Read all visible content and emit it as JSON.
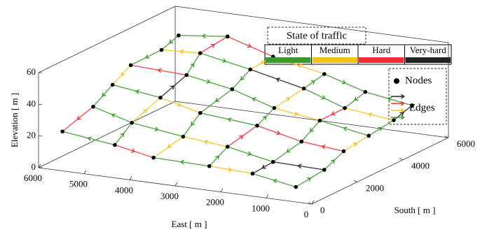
{
  "chart_data": {
    "type": "network3d",
    "xlabel": "East [ m ]",
    "ylabel": "South [ m ]",
    "zlabel": "Elevation [ m ]",
    "xlim": [
      0,
      6000
    ],
    "xticks": [
      0,
      1000,
      2000,
      3000,
      4000,
      5000,
      6000
    ],
    "ylim": [
      0,
      6000
    ],
    "yticks": [
      0,
      2000,
      4000,
      6000
    ],
    "zlim": [
      0,
      60
    ],
    "zticks": [
      0,
      20,
      40,
      60
    ],
    "legend_title": "State of traffic",
    "states": [
      {
        "name": "Light",
        "color": "#3a9a2a"
      },
      {
        "name": "Medium",
        "color": "#f2c21a"
      },
      {
        "name": "Hard",
        "color": "#ee2f3a"
      },
      {
        "name": "Very-hard",
        "color": "#222222"
      }
    ],
    "nodes_label": "Nodes",
    "edges_label": "Edges",
    "node_color": "#000000",
    "nodes": [
      {
        "east": 600,
        "south": 500,
        "elevation": 5
      },
      {
        "east": 1650,
        "south": 700,
        "elevation": 8
      },
      {
        "east": 2550,
        "south": 600,
        "elevation": 10
      },
      {
        "east": 3700,
        "south": 450,
        "elevation": 12
      },
      {
        "east": 4650,
        "south": 650,
        "elevation": 15
      },
      {
        "east": 5750,
        "south": 550,
        "elevation": 20
      },
      {
        "east": 550,
        "south": 1650,
        "elevation": 8
      },
      {
        "east": 1600,
        "south": 1500,
        "elevation": 10
      },
      {
        "east": 2700,
        "south": 1700,
        "elevation": 14
      },
      {
        "east": 3600,
        "south": 1550,
        "elevation": 18
      },
      {
        "east": 4750,
        "south": 1600,
        "elevation": 22
      },
      {
        "east": 5650,
        "south": 1700,
        "elevation": 28
      },
      {
        "east": 650,
        "south": 2700,
        "elevation": 12
      },
      {
        "east": 1550,
        "south": 2650,
        "elevation": 15
      },
      {
        "east": 2600,
        "south": 2800,
        "elevation": 20
      },
      {
        "east": 3750,
        "south": 2600,
        "elevation": 25
      },
      {
        "east": 4700,
        "south": 2750,
        "elevation": 30
      },
      {
        "east": 5700,
        "south": 2650,
        "elevation": 35
      },
      {
        "east": 600,
        "south": 3700,
        "elevation": 15
      },
      {
        "east": 1700,
        "south": 3750,
        "elevation": 20
      },
      {
        "east": 2650,
        "south": 3650,
        "elevation": 25
      },
      {
        "east": 3650,
        "south": 3800,
        "elevation": 32
      },
      {
        "east": 4600,
        "south": 3700,
        "elevation": 38
      },
      {
        "east": 5800,
        "south": 3650,
        "elevation": 40
      },
      {
        "east": 550,
        "south": 4700,
        "elevation": 18
      },
      {
        "east": 1600,
        "south": 4650,
        "elevation": 22
      },
      {
        "east": 2550,
        "south": 4750,
        "elevation": 30
      },
      {
        "east": 3700,
        "south": 4700,
        "elevation": 38
      },
      {
        "east": 4750,
        "south": 4600,
        "elevation": 45
      },
      {
        "east": 5700,
        "south": 4800,
        "elevation": 42
      },
      {
        "east": 650,
        "south": 5700,
        "elevation": 20
      },
      {
        "east": 1650,
        "south": 5650,
        "elevation": 25
      },
      {
        "east": 2600,
        "south": 5750,
        "elevation": 32
      },
      {
        "east": 3650,
        "south": 5600,
        "elevation": 40
      },
      {
        "east": 4700,
        "south": 5700,
        "elevation": 48
      },
      {
        "east": 5750,
        "south": 5650,
        "elevation": 45
      }
    ],
    "edges": [
      [
        0,
        1,
        0
      ],
      [
        2,
        1,
        1
      ],
      [
        2,
        3,
        0
      ],
      [
        4,
        3,
        2
      ],
      [
        4,
        5,
        0
      ],
      [
        6,
        7,
        3
      ],
      [
        8,
        7,
        0
      ],
      [
        8,
        9,
        1
      ],
      [
        10,
        9,
        0
      ],
      [
        10,
        11,
        0
      ],
      [
        12,
        13,
        2
      ],
      [
        14,
        13,
        2
      ],
      [
        14,
        15,
        0
      ],
      [
        16,
        15,
        1
      ],
      [
        16,
        17,
        0
      ],
      [
        18,
        19,
        0
      ],
      [
        20,
        19,
        1
      ],
      [
        20,
        21,
        0
      ],
      [
        22,
        21,
        0
      ],
      [
        22,
        23,
        2
      ],
      [
        24,
        25,
        1
      ],
      [
        26,
        25,
        0
      ],
      [
        26,
        27,
        3
      ],
      [
        28,
        27,
        0
      ],
      [
        28,
        29,
        1
      ],
      [
        30,
        31,
        0
      ],
      [
        32,
        31,
        0
      ],
      [
        32,
        33,
        1
      ],
      [
        34,
        33,
        2
      ],
      [
        34,
        35,
        0
      ],
      [
        0,
        6,
        0
      ],
      [
        7,
        1,
        3
      ],
      [
        2,
        8,
        0
      ],
      [
        9,
        3,
        1
      ],
      [
        4,
        10,
        0
      ],
      [
        11,
        5,
        2
      ],
      [
        6,
        12,
        0
      ],
      [
        13,
        7,
        0
      ],
      [
        8,
        14,
        2
      ],
      [
        15,
        9,
        0
      ],
      [
        10,
        16,
        1
      ],
      [
        17,
        11,
        0
      ],
      [
        12,
        18,
        1
      ],
      [
        19,
        13,
        0
      ],
      [
        14,
        20,
        0
      ],
      [
        21,
        15,
        0
      ],
      [
        16,
        22,
        3
      ],
      [
        23,
        17,
        1
      ],
      [
        18,
        24,
        0
      ],
      [
        25,
        19,
        2
      ],
      [
        20,
        26,
        1
      ],
      [
        27,
        21,
        0
      ],
      [
        22,
        28,
        0
      ],
      [
        29,
        23,
        0
      ],
      [
        24,
        30,
        3
      ],
      [
        31,
        25,
        0
      ],
      [
        26,
        32,
        0
      ],
      [
        33,
        27,
        1
      ],
      [
        28,
        34,
        2
      ],
      [
        35,
        29,
        0
      ]
    ]
  }
}
